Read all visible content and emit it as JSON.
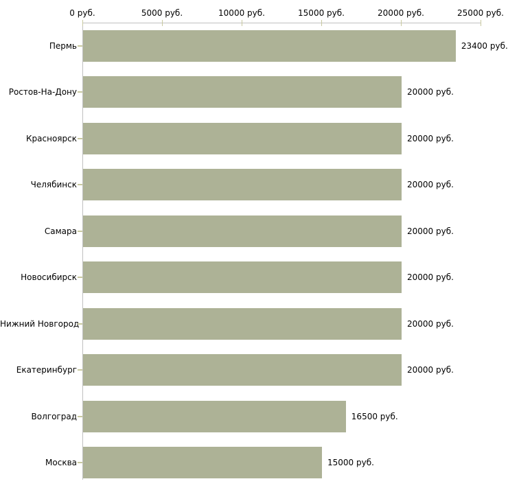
{
  "chart_data": {
    "type": "bar",
    "orientation": "horizontal",
    "title": "",
    "xlabel": "",
    "ylabel": "",
    "unit": "руб.",
    "xlim": [
      0,
      25000
    ],
    "grid": false,
    "legend": false,
    "axis_position": "top",
    "categories": [
      "Пермь",
      "Ростов-На-Дону",
      "Красноярск",
      "Челябинск",
      "Самара",
      "Новосибирск",
      "Нижний Новгород",
      "Екатеринбург",
      "Волгоград",
      "Москва"
    ],
    "values": [
      23400,
      20000,
      20000,
      20000,
      20000,
      20000,
      20000,
      20000,
      16500,
      15000
    ],
    "value_labels": [
      "23400 руб.",
      "20000 руб.",
      "20000 руб.",
      "20000 руб.",
      "20000 руб.",
      "20000 руб.",
      "20000 руб.",
      "20000 руб.",
      "16500 руб.",
      "15000 руб."
    ],
    "x_ticks": [
      0,
      5000,
      10000,
      15000,
      20000,
      25000
    ],
    "x_tick_labels": [
      "0 руб.",
      "5000 руб.",
      "10000 руб.",
      "15000 руб.",
      "20000 руб.",
      "25000 руб."
    ],
    "colors": {
      "bar_fill": "#adb296",
      "axis_line": "#c0c0c0",
      "tick_mark": "#c9c9a0",
      "text": "#000000",
      "background": "#ffffff"
    }
  }
}
